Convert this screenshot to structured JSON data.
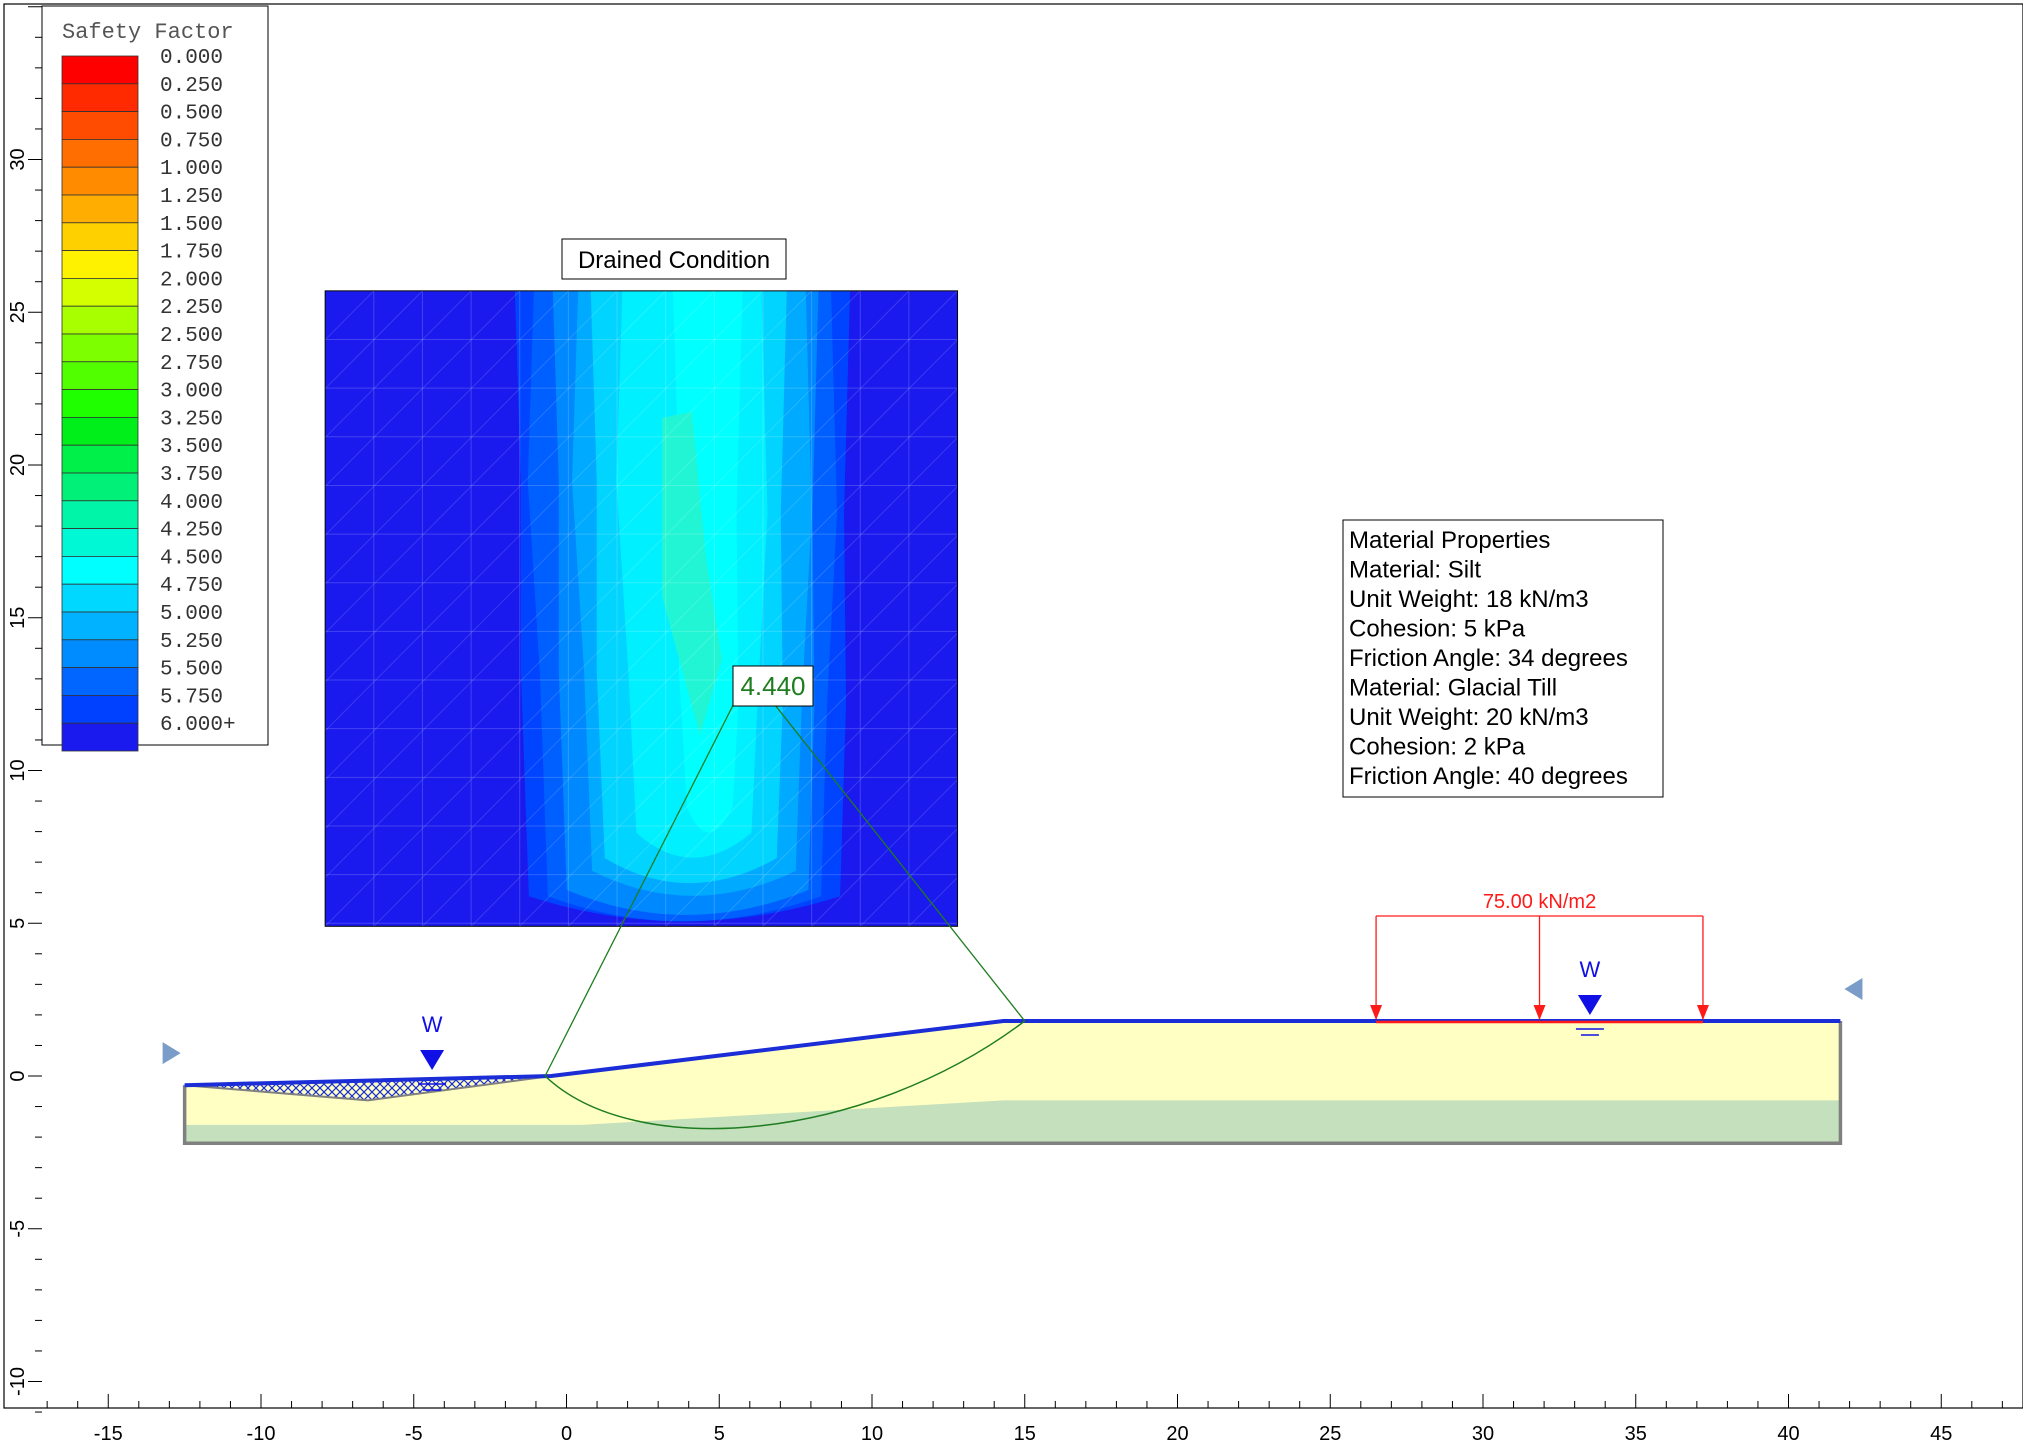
{
  "legend": {
    "title": "Safety Factor",
    "entries": [
      {
        "label": "0.000",
        "color": "#ff0000"
      },
      {
        "label": "0.250",
        "color": "#ff2a00"
      },
      {
        "label": "0.500",
        "color": "#ff4c00"
      },
      {
        "label": "0.750",
        "color": "#ff6e00"
      },
      {
        "label": "1.000",
        "color": "#ff8c00"
      },
      {
        "label": "1.250",
        "color": "#ffad00"
      },
      {
        "label": "1.500",
        "color": "#ffd000"
      },
      {
        "label": "1.750",
        "color": "#fff200"
      },
      {
        "label": "2.000",
        "color": "#d4ff00"
      },
      {
        "label": "2.250",
        "color": "#a8ff00"
      },
      {
        "label": "2.500",
        "color": "#7dff00"
      },
      {
        "label": "2.750",
        "color": "#52ff00"
      },
      {
        "label": "3.000",
        "color": "#1fff00"
      },
      {
        "label": "3.250",
        "color": "#00ee1a"
      },
      {
        "label": "3.500",
        "color": "#00f04a"
      },
      {
        "label": "3.750",
        "color": "#00f078"
      },
      {
        "label": "4.000",
        "color": "#00f5a8"
      },
      {
        "label": "4.250",
        "color": "#00f8d4"
      },
      {
        "label": "4.500",
        "color": "#00ffff"
      },
      {
        "label": "4.750",
        "color": "#00d8ff"
      },
      {
        "label": "5.000",
        "color": "#00b2ff"
      },
      {
        "label": "5.250",
        "color": "#008cff"
      },
      {
        "label": "5.500",
        "color": "#0066ff"
      },
      {
        "label": "5.750",
        "color": "#0040ff"
      },
      {
        "label": "6.000+",
        "color": "#1a1aee"
      }
    ]
  },
  "grid_title": "Drained Condition",
  "min_fs_label": "4.440",
  "material_box": [
    "Material Properties",
    "Material: Silt",
    "Unit Weight: 18 kN/m3",
    "Cohesion: 5 kPa",
    "Friction Angle: 34 degrees",
    "Material: Glacial Till",
    "Unit Weight: 20 kN/m3",
    "Cohesion: 2 kPa",
    "Friction Angle: 40 degrees"
  ],
  "load_label": "75.00 kN/m2",
  "water_label": "W",
  "x_axis": {
    "min": -17,
    "max": 48,
    "ticks": [
      -15,
      -10,
      -5,
      0,
      5,
      10,
      15,
      20,
      25,
      30,
      35,
      40,
      45
    ]
  },
  "y_axis": {
    "min": -11,
    "max": 35,
    "ticks": [
      -10,
      -5,
      0,
      5,
      10,
      15,
      20,
      25,
      30
    ]
  },
  "model": {
    "ground_surface": [
      [
        -12.5,
        -0.3
      ],
      [
        -0.5,
        0.0
      ],
      [
        14.3,
        1.8
      ],
      [
        41.7,
        1.8
      ]
    ],
    "pond_bottom": [
      [
        -12.5,
        -0.3
      ],
      [
        -6.5,
        -0.8
      ],
      [
        -0.5,
        0.0
      ]
    ],
    "till_top": [
      [
        -12.5,
        -1.6
      ],
      [
        0.5,
        -1.6
      ],
      [
        14.3,
        -0.8
      ],
      [
        41.7,
        -0.8
      ]
    ],
    "base_elevation": -2.2,
    "slip_circle": {
      "entry": [
        -0.7,
        0.0
      ],
      "exit": [
        15.0,
        1.8
      ],
      "bottom": -1.5
    },
    "critical_center": [
      6.8,
      12.8
    ],
    "load": {
      "from": 26.5,
      "to": 37.2,
      "elevation": 1.8
    },
    "water_markers": [
      [
        -4.4,
        0.0
      ],
      [
        33.5,
        1.8
      ]
    ],
    "search_grid": {
      "x0": -7.9,
      "x1": 12.8,
      "y0": 4.9,
      "y1": 25.7
    }
  },
  "colors": {
    "silt": "#ffffc4",
    "till": "#c4e0bc",
    "surface": "#1a2dd6",
    "boundary": "#808080",
    "circle": "#1e7d1e",
    "load": "#ff1a1a",
    "water": "#1010e6",
    "grid_bg": "#1a1aee"
  }
}
